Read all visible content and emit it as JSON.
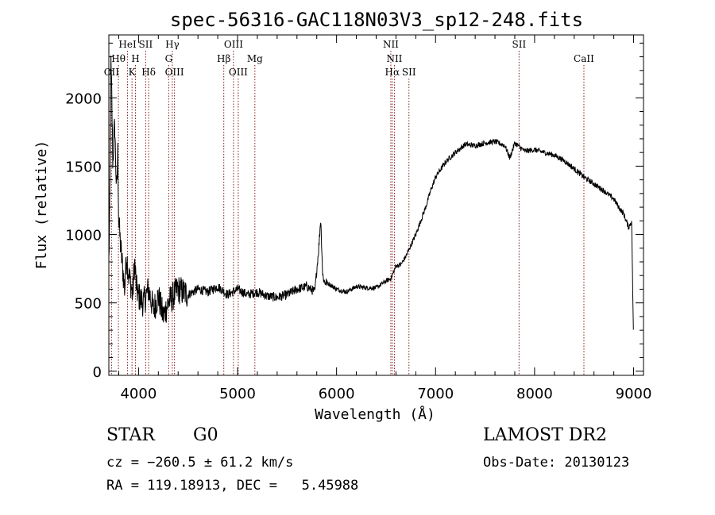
{
  "chart_data": {
    "type": "line",
    "title": "spec-56316-GAC118N03V3_sp12-248.fits",
    "xlabel": "Wavelength (Å)",
    "ylabel": "Flux (relative)",
    "xlim": [
      3700,
      9100
    ],
    "ylim": [
      -30,
      2460
    ],
    "xticks": [
      4000,
      5000,
      6000,
      7000,
      8000,
      9000
    ],
    "yticks": [
      0,
      500,
      1000,
      1500,
      2000
    ],
    "grid": false,
    "line_color": "#000000",
    "marker_color": "#8b1a1a",
    "spectrum": {
      "x": [
        3700,
        3710,
        3720,
        3730,
        3740,
        3750,
        3760,
        3770,
        3780,
        3790,
        3800,
        3820,
        3840,
        3860,
        3880,
        3900,
        3920,
        3940,
        3960,
        3980,
        4000,
        4050,
        4100,
        4150,
        4200,
        4250,
        4300,
        4350,
        4400,
        4500,
        4600,
        4700,
        4800,
        4900,
        5000,
        5100,
        5200,
        5300,
        5400,
        5500,
        5600,
        5700,
        5780,
        5820,
        5840,
        5860,
        5880,
        5900,
        6000,
        6100,
        6200,
        6300,
        6400,
        6500,
        6550,
        6600,
        6650,
        6700,
        6750,
        6800,
        6850,
        6900,
        6950,
        7000,
        7100,
        7200,
        7300,
        7400,
        7500,
        7600,
        7700,
        7750,
        7800,
        7900,
        8000,
        8100,
        8200,
        8300,
        8400,
        8500,
        8600,
        8700,
        8800,
        8850,
        8900,
        8950,
        8980,
        9000
      ],
      "y": [
        800,
        1200,
        2250,
        2000,
        1500,
        1700,
        1800,
        1500,
        1300,
        1600,
        1100,
        900,
        750,
        600,
        850,
        700,
        650,
        550,
        800,
        600,
        550,
        500,
        600,
        450,
        550,
        400,
        500,
        550,
        600,
        560,
        600,
        580,
        620,
        560,
        600,
        560,
        580,
        550,
        540,
        560,
        600,
        620,
        580,
        900,
        1120,
        700,
        650,
        650,
        600,
        580,
        620,
        610,
        610,
        660,
        680,
        770,
        780,
        840,
        920,
        1000,
        1100,
        1200,
        1320,
        1420,
        1530,
        1600,
        1660,
        1650,
        1670,
        1680,
        1650,
        1560,
        1670,
        1610,
        1620,
        1600,
        1580,
        1540,
        1480,
        1420,
        1370,
        1320,
        1260,
        1200,
        1150,
        1050,
        1100,
        200
      ]
    },
    "line_markers": [
      {
        "label": "Hθ",
        "x": 3797,
        "row": 2
      },
      {
        "label": "OII",
        "x": 3727,
        "row": 3
      },
      {
        "label": "HeI",
        "x": 3889,
        "row": 1
      },
      {
        "label": "K",
        "x": 3934,
        "row": 3
      },
      {
        "label": "H",
        "x": 3969,
        "row": 2
      },
      {
        "label": "SII",
        "x": 4072,
        "row": 1
      },
      {
        "label": "Hδ",
        "x": 4102,
        "row": 3
      },
      {
        "label": "Hγ",
        "x": 4341,
        "row": 1
      },
      {
        "label": "G",
        "x": 4305,
        "row": 2
      },
      {
        "label": "OIII",
        "x": 4363,
        "row": 3
      },
      {
        "label": "Hβ",
        "x": 4861,
        "row": 2
      },
      {
        "label": "OIII",
        "x": 4959,
        "row": 1
      },
      {
        "label": "OIII",
        "x": 5007,
        "row": 3
      },
      {
        "label": "Mg",
        "x": 5175,
        "row": 2
      },
      {
        "label": "NII",
        "x": 6548,
        "row": 1
      },
      {
        "label": "NII",
        "x": 6584,
        "row": 2
      },
      {
        "label": "Hα",
        "x": 6563,
        "row": 3
      },
      {
        "label": "SII",
        "x": 6731,
        "row": 3
      },
      {
        "label": "SII",
        "x": 7843,
        "row": 1
      },
      {
        "label": "CaII",
        "x": 8498,
        "row": 2
      }
    ]
  },
  "info": {
    "object_class": "STAR",
    "subclass": "G0",
    "survey": "LAMOST DR2",
    "cz": "cz = −260.5 ± 61.2 km/s",
    "obs_date": "Obs-Date: 20130123",
    "radec": "RA = 119.18913, DEC =   5.45988"
  }
}
